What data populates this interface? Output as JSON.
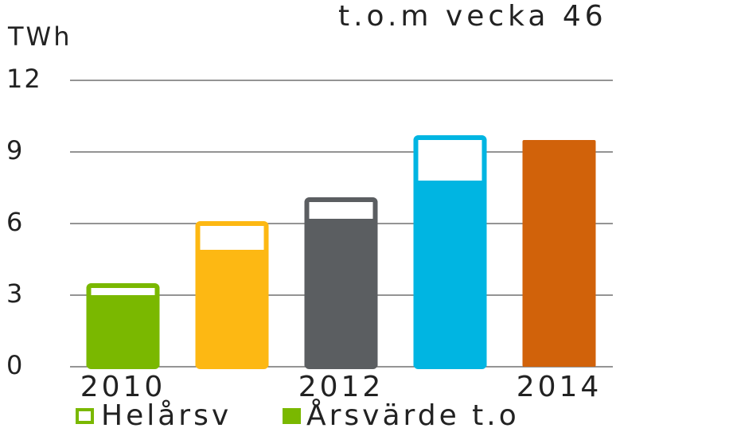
{
  "chart_data": {
    "type": "bar",
    "title": "t.o.m vecka 46",
    "y_label": "TWh",
    "categories": [
      "2010",
      null,
      "2012",
      null,
      "2014"
    ],
    "colors": [
      "#7ab800",
      "#fdb813",
      "#5b5e61",
      "#00b5e2",
      "#d1620a"
    ],
    "series": [
      {
        "name": "Helårsv",
        "color": "#7ab800",
        "style": "outline",
        "values": [
          3.5,
          6.1,
          7.1,
          9.7,
          null
        ]
      },
      {
        "name": "Årsvärde t.o",
        "color": "#7ab800",
        "style": "filled",
        "values": [
          3.0,
          4.9,
          6.2,
          7.8,
          9.5
        ]
      }
    ],
    "ylim": [
      0,
      12
    ],
    "yticks": [
      0,
      3,
      6,
      9,
      12
    ],
    "grid": true
  }
}
